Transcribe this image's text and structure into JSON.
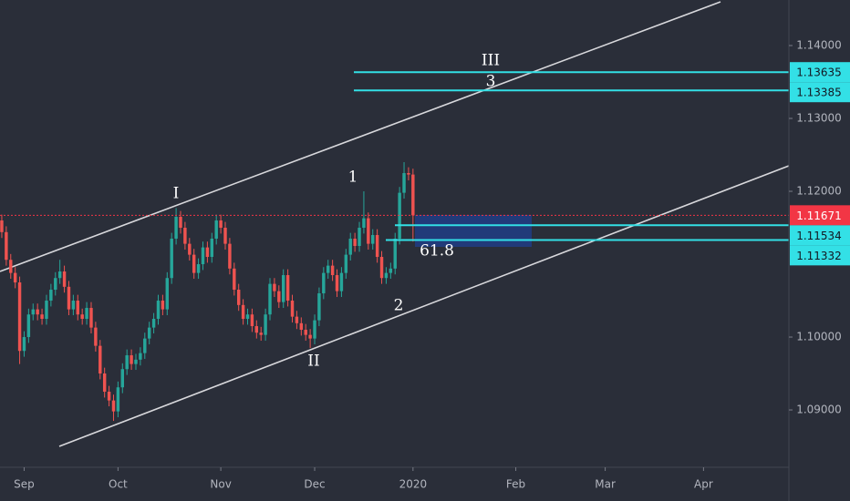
{
  "chart_data": {
    "type": "candlestick",
    "up_color": "#26a69a",
    "down_color": "#ef5350",
    "open": [
      1.116,
      1.1144,
      1.1106,
      1.1088,
      1.1075,
      1.0981,
      1.1,
      1.1031,
      1.1038,
      1.1031,
      1.1025,
      1.105,
      1.1065,
      1.1081,
      1.109,
      1.1069,
      1.1038,
      1.105,
      1.1031,
      1.1025,
      1.104,
      1.1013,
      1.0988,
      1.095,
      1.0925,
      1.0913,
      1.0898,
      1.0931,
      1.0956,
      1.0975,
      1.0963,
      1.0969,
      1.0978,
      1.0998,
      1.1013,
      1.1025,
      1.105,
      1.1038,
      1.1081,
      1.1135,
      1.1165,
      1.115,
      1.1128,
      1.1113,
      1.1088,
      1.11,
      1.1123,
      1.111,
      1.1135,
      1.116,
      1.115,
      1.1128,
      1.1094,
      1.1065,
      1.1044,
      1.1025,
      1.1031,
      1.1015,
      1.1006,
      1.1003,
      1.1031,
      1.1073,
      1.1063,
      1.1048,
      1.1085,
      1.105,
      1.1028,
      1.1019,
      1.101,
      1.1003,
      1.0998,
      1.1023,
      1.106,
      1.1088,
      1.1098,
      1.1085,
      1.1063,
      1.1088,
      1.1113,
      1.1135,
      1.1125,
      1.115,
      1.1163,
      1.1128,
      1.114,
      1.111,
      1.1081,
      1.1088,
      1.1094,
      1.1135,
      1.1198,
      1.1225,
      1.1223
    ],
    "high": [
      1.1168,
      1.1152,
      1.1114,
      1.1096,
      1.1083,
      1.1008,
      1.1039,
      1.1046,
      1.1046,
      1.1039,
      1.1058,
      1.1073,
      1.1089,
      1.1106,
      1.1098,
      1.1077,
      1.1058,
      1.1058,
      1.1039,
      1.1048,
      1.1048,
      1.1021,
      1.0996,
      1.0958,
      1.0933,
      1.0921,
      1.0939,
      1.0964,
      1.0983,
      1.0983,
      1.0977,
      1.0986,
      1.1006,
      1.1021,
      1.1033,
      1.1058,
      1.1058,
      1.1089,
      1.1143,
      1.1177,
      1.1173,
      1.1158,
      1.1136,
      1.1121,
      1.1108,
      1.1131,
      1.1131,
      1.1143,
      1.1168,
      1.1168,
      1.1158,
      1.1136,
      1.1102,
      1.1073,
      1.1052,
      1.1039,
      1.1039,
      1.1023,
      1.1014,
      1.1039,
      1.1081,
      1.1081,
      1.1071,
      1.1093,
      1.1093,
      1.1058,
      1.1036,
      1.1027,
      1.1018,
      1.1011,
      1.1031,
      1.1068,
      1.1096,
      1.1106,
      1.1106,
      1.1093,
      1.1096,
      1.1121,
      1.1143,
      1.1143,
      1.1158,
      1.12,
      1.1171,
      1.1148,
      1.1148,
      1.1118,
      1.1096,
      1.1102,
      1.1143,
      1.1206,
      1.124,
      1.1233,
      1.1231
    ],
    "low": [
      1.1136,
      1.1098,
      1.108,
      1.1067,
      1.0963,
      1.0973,
      1.0992,
      1.1023,
      1.1023,
      1.1017,
      1.1017,
      1.1042,
      1.1057,
      1.1073,
      1.1061,
      1.103,
      1.103,
      1.1023,
      1.1017,
      1.1017,
      1.1005,
      1.098,
      1.0942,
      1.0917,
      1.0905,
      1.0885,
      1.089,
      1.0923,
      1.0948,
      1.0955,
      1.0955,
      1.0961,
      1.097,
      1.099,
      1.1005,
      1.1017,
      1.103,
      1.103,
      1.1073,
      1.1127,
      1.1142,
      1.112,
      1.1105,
      1.108,
      1.108,
      1.1092,
      1.1102,
      1.1102,
      1.1127,
      1.1142,
      1.112,
      1.1086,
      1.1057,
      1.1036,
      1.1017,
      1.1017,
      1.1007,
      1.0998,
      1.0995,
      1.0995,
      1.1023,
      1.1055,
      1.104,
      1.104,
      1.1042,
      1.102,
      1.1011,
      1.1002,
      1.0995,
      1.0985,
      1.099,
      1.1015,
      1.1052,
      1.108,
      1.1077,
      1.1055,
      1.1055,
      1.108,
      1.1105,
      1.1117,
      1.1117,
      1.1142,
      1.112,
      1.112,
      1.1102,
      1.1073,
      1.1073,
      1.108,
      1.1086,
      1.1127,
      1.119,
      1.1215,
      1.1131
    ],
    "close": [
      1.1144,
      1.1106,
      1.1088,
      1.1075,
      1.0981,
      1.1,
      1.1031,
      1.1038,
      1.1031,
      1.1025,
      1.105,
      1.1065,
      1.1081,
      1.109,
      1.1069,
      1.1038,
      1.105,
      1.1031,
      1.1025,
      1.104,
      1.1013,
      1.0988,
      1.095,
      1.0925,
      1.0913,
      1.0898,
      1.0931,
      1.0956,
      1.0975,
      1.0963,
      1.0969,
      1.0978,
      1.0998,
      1.1013,
      1.1025,
      1.105,
      1.1038,
      1.1081,
      1.1135,
      1.1165,
      1.115,
      1.1128,
      1.1113,
      1.1088,
      1.11,
      1.1123,
      1.111,
      1.1135,
      1.116,
      1.115,
      1.1128,
      1.1094,
      1.1065,
      1.1044,
      1.1025,
      1.1031,
      1.1015,
      1.1006,
      1.1003,
      1.1031,
      1.1073,
      1.1063,
      1.1048,
      1.1085,
      1.105,
      1.1028,
      1.1019,
      1.101,
      1.1003,
      1.0998,
      1.1023,
      1.106,
      1.1088,
      1.1098,
      1.1085,
      1.1063,
      1.1088,
      1.1113,
      1.1135,
      1.1125,
      1.115,
      1.1163,
      1.1128,
      1.114,
      1.111,
      1.1081,
      1.1088,
      1.1094,
      1.1135,
      1.1198,
      1.1225,
      1.1223,
      1.1167
    ],
    "xlim": [
      -0.4,
      176.1
    ],
    "xticks": [
      {
        "value": 5,
        "label": "Sep"
      },
      {
        "value": 26,
        "label": "Oct"
      },
      {
        "value": 49,
        "label": "Nov"
      },
      {
        "value": 70,
        "label": "Dec"
      },
      {
        "value": 92,
        "label": "2020"
      },
      {
        "value": 115,
        "label": "Feb"
      },
      {
        "value": 135,
        "label": "Mar"
      },
      {
        "value": 157,
        "label": "Apr"
      }
    ],
    "ylim": [
      1.08213,
      1.14625
    ],
    "yticks": [
      {
        "value": 1.09,
        "label": "1.09000"
      },
      {
        "value": 1.1,
        "label": "1.10000"
      },
      {
        "value": 1.12,
        "label": "1.12000"
      },
      {
        "value": 1.13,
        "label": "1.13000"
      },
      {
        "value": 1.14,
        "label": "1.14000"
      }
    ],
    "current_price": {
      "value": 1.11671,
      "color": "#f23645"
    },
    "levels": [
      {
        "value": 1.13635,
        "color": "#33e0e6"
      },
      {
        "value": 1.13385,
        "color": "#33e0e6"
      },
      {
        "value": 1.11534,
        "color": "#33e0e6"
      },
      {
        "value": 1.11332,
        "color": "#33e0e6"
      }
    ],
    "annotations": [
      "I",
      "II",
      "III",
      "1",
      "2",
      "3",
      "61.8"
    ]
  }
}
